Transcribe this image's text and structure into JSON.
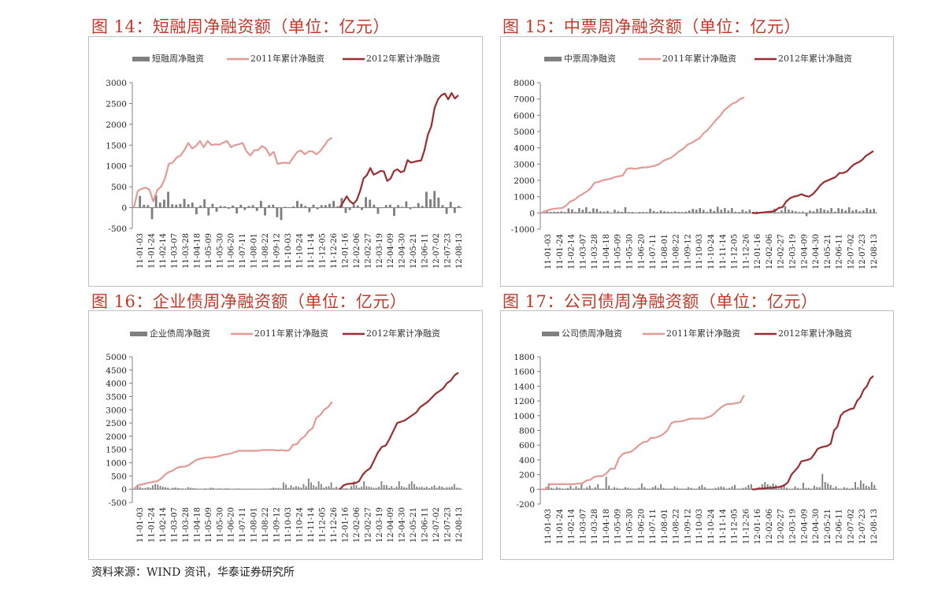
{
  "source": "资料来源：WIND 资讯，华泰证券研究所",
  "colors": {
    "bar": "#7f7f7f",
    "line2011": "#e29a95",
    "line2012": "#9b2d30",
    "title": "#c0392b"
  },
  "dates": [
    "11-01-03",
    "11-01-24",
    "11-02-14",
    "11-03-07",
    "11-03-28",
    "11-04-18",
    "11-05-09",
    "11-05-30",
    "11-06-20",
    "11-07-11",
    "11-08-01",
    "11-08-22",
    "11-09-12",
    "11-10-03",
    "11-10-24",
    "11-11-14",
    "11-12-05",
    "11-12-26",
    "12-01-16",
    "12-02-06",
    "12-02-27",
    "12-03-19",
    "12-04-09",
    "12-04-30",
    "12-05-21",
    "12-06-11",
    "12-07-02",
    "12-07-23",
    "12-08-13"
  ],
  "chart_data": [
    {
      "type": "bar+line",
      "title": "图 14：短融周净融资额（单位：亿元）",
      "legend": [
        "短融周净融资",
        "2011年累计净融资",
        "2012年累计净融资"
      ],
      "ylim": [
        -500,
        3000
      ],
      "yticks": [
        -500,
        0,
        500,
        1000,
        1500,
        2000,
        2500,
        3000
      ],
      "bars": [
        10,
        280,
        70,
        60,
        -280,
        300,
        120,
        190,
        380,
        80,
        70,
        90,
        210,
        80,
        120,
        -160,
        50,
        200,
        -190,
        90,
        -100,
        40,
        30,
        -30,
        50,
        -140,
        70,
        -60,
        40,
        60,
        -80,
        160,
        -190,
        60,
        70,
        -230,
        -300,
        20,
        10,
        30,
        160,
        90,
        40,
        -110,
        70,
        -40,
        60,
        60,
        90,
        160,
        30,
        230,
        -130,
        -60,
        70,
        50,
        -60,
        250,
        190,
        70,
        -150,
        -10,
        60,
        70,
        -200,
        60,
        20,
        150,
        -40,
        20,
        110,
        40,
        380,
        200,
        400,
        240,
        60,
        -150,
        140,
        -130,
        40
      ],
      "series2011": [
        0,
        400,
        450,
        480,
        430,
        150,
        420,
        500,
        700,
        1050,
        1080,
        1200,
        1250,
        1380,
        1550,
        1420,
        1480,
        1600,
        1450,
        1600,
        1500,
        1520,
        1510,
        1560,
        1600,
        1450,
        1500,
        1520,
        1550,
        1350,
        1250,
        1380,
        1380,
        1480,
        1420,
        1250,
        1340,
        1050,
        1070,
        1080,
        1060,
        1200,
        1330,
        1370,
        1280,
        1350,
        1350,
        1280,
        1360,
        1480,
        1620,
        1680
      ],
      "series2012": [
        0,
        130,
        270,
        150,
        90,
        180,
        400,
        700,
        780,
        950,
        790,
        830,
        880,
        870,
        640,
        700,
        880,
        920,
        850,
        880,
        1140,
        1080,
        1100,
        1120,
        1130,
        1380,
        1750,
        1950,
        2400,
        2600,
        2700,
        2740,
        2600,
        2750,
        2620,
        2700
      ]
    },
    {
      "type": "bar+line",
      "title": "图 15：中票周净融资额（单位：亿元）",
      "legend": [
        "中票周净融资",
        "2011年累计净融资",
        "2012年累计净融资"
      ],
      "ylim": [
        -1000,
        8000
      ],
      "yticks": [
        -1000,
        0,
        1000,
        2000,
        3000,
        4000,
        5000,
        6000,
        7000,
        8000
      ],
      "bars": [
        120,
        80,
        60,
        80,
        70,
        100,
        60,
        280,
        220,
        60,
        300,
        200,
        350,
        80,
        280,
        250,
        100,
        80,
        120,
        30,
        200,
        100,
        60,
        350,
        50,
        60,
        30,
        60,
        60,
        50,
        260,
        120,
        60,
        150,
        100,
        80,
        60,
        100,
        60,
        60,
        80,
        150,
        250,
        200,
        300,
        180,
        60,
        250,
        120,
        380,
        200,
        300,
        150,
        300,
        80,
        60,
        200,
        100,
        200,
        70,
        80,
        20,
        50,
        100,
        50,
        260,
        50,
        150,
        420,
        200,
        150,
        100,
        60,
        80,
        -200,
        150,
        100,
        250,
        300,
        200,
        150,
        300,
        80,
        300,
        250,
        150,
        350,
        150,
        200,
        100,
        150,
        300,
        200,
        250
      ],
      "series2011": [
        0,
        120,
        200,
        260,
        280,
        300,
        450,
        700,
        800,
        1000,
        1150,
        1300,
        1500,
        1850,
        1900,
        2000,
        2050,
        2100,
        2200,
        2250,
        2300,
        2700,
        2750,
        2700,
        2750,
        2800,
        2800,
        2850,
        2900,
        3000,
        3200,
        3300,
        3400,
        3600,
        3800,
        3950,
        4200,
        4300,
        4450,
        4600,
        4900,
        5100,
        5400,
        5700,
        5950,
        6300,
        6500,
        6700,
        6800,
        7000,
        7100
      ],
      "series2012": [
        0,
        -20,
        10,
        30,
        60,
        80,
        120,
        300,
        350,
        700,
        900,
        1000,
        1050,
        1150,
        1050,
        1000,
        1150,
        1400,
        1700,
        1900,
        2000,
        2100,
        2200,
        2450,
        2450,
        2550,
        2800,
        3000,
        3100,
        3250,
        3500,
        3650,
        3800
      ]
    },
    {
      "type": "bar+line",
      "title": "图 16：企业债周净融资额（单位：亿元）",
      "legend": [
        "企业债周净融资",
        "2011年累计净融资",
        "2012年累计净融资"
      ],
      "ylim": [
        -500,
        5000
      ],
      "yticks": [
        -500,
        0,
        500,
        1000,
        1500,
        2000,
        2500,
        3000,
        3500,
        4000,
        4500,
        5000
      ],
      "bars": [
        20,
        150,
        80,
        40,
        50,
        80,
        60,
        150,
        200,
        180,
        130,
        100,
        80,
        60,
        20,
        60,
        70,
        50,
        30,
        30,
        20,
        80,
        60,
        40,
        30,
        20,
        10,
        20,
        30,
        20,
        60,
        50,
        10,
        30,
        30,
        20,
        40,
        30,
        10,
        20,
        20,
        30,
        10,
        10,
        20,
        20,
        20,
        20,
        10,
        10,
        10,
        10,
        20,
        20,
        30,
        60,
        40,
        50,
        30,
        260,
        180,
        50,
        150,
        80,
        120,
        100,
        60,
        200,
        120,
        400,
        260,
        150,
        100,
        300,
        200,
        60,
        100,
        120,
        260,
        50,
        100,
        40,
        80,
        40,
        40,
        20,
        120,
        300,
        150,
        60,
        100,
        300,
        120,
        100,
        80,
        50,
        50,
        100,
        300,
        160,
        160,
        60,
        120,
        50,
        100,
        300,
        120,
        80,
        60,
        200,
        300,
        200,
        100,
        80,
        100,
        60,
        100,
        40,
        100,
        150,
        60,
        120,
        100,
        50,
        80,
        80,
        100,
        200,
        60,
        50
      ],
      "series2011": [
        0,
        150,
        180,
        220,
        250,
        280,
        300,
        400,
        550,
        650,
        700,
        800,
        850,
        850,
        900,
        1000,
        1100,
        1150,
        1180,
        1200,
        1200,
        1220,
        1250,
        1300,
        1320,
        1350,
        1400,
        1450,
        1450,
        1450,
        1450,
        1450,
        1450,
        1480,
        1480,
        1480,
        1480,
        1460,
        1480,
        1450,
        1480,
        1680,
        1700,
        1900,
        2000,
        2200,
        2300,
        2700,
        2800,
        3000,
        3100,
        3300
      ],
      "series2012": [
        0,
        150,
        200,
        210,
        230,
        300,
        550,
        700,
        800,
        1100,
        1400,
        1600,
        1650,
        1900,
        2200,
        2500,
        2550,
        2600,
        2700,
        2800,
        2900,
        3100,
        3200,
        3300,
        3450,
        3600,
        3700,
        3800,
        4000,
        4100,
        4300,
        4400
      ]
    },
    {
      "type": "bar+line",
      "title": "图 17：公司债周净融资额（单位：亿元）",
      "legend": [
        "公司债周净融资",
        "2011年累计净融资",
        "2012年累计净融资"
      ],
      "ylim": [
        -200,
        1800
      ],
      "yticks": [
        -200,
        0,
        200,
        400,
        600,
        800,
        1000,
        1200,
        1400,
        1600,
        1800
      ],
      "bars": [
        0,
        30,
        80,
        20,
        10,
        30,
        20,
        10,
        10,
        20,
        50,
        10,
        40,
        20,
        70,
        10,
        30,
        50,
        10,
        30,
        70,
        10,
        10,
        170,
        50,
        10,
        30,
        20,
        10,
        10,
        30,
        20,
        10,
        10,
        10,
        20,
        80,
        30,
        10,
        10,
        30,
        50,
        20,
        70,
        20,
        10,
        10,
        10,
        40,
        20,
        10,
        10,
        10,
        30,
        20,
        10,
        10,
        40,
        60,
        30,
        10,
        10,
        10,
        20,
        30,
        40,
        30,
        10,
        20,
        40,
        60,
        10,
        10,
        20,
        30,
        60,
        70,
        10,
        20,
        30,
        70,
        100,
        70,
        50,
        80,
        60,
        10,
        40,
        70,
        20,
        10,
        10,
        40,
        20,
        10,
        90,
        20,
        20,
        10,
        50,
        30,
        30,
        210,
        100,
        80,
        60,
        20,
        40,
        10,
        10,
        30,
        20,
        10,
        20,
        100,
        30,
        120,
        80,
        50,
        40,
        100,
        60
      ],
      "series2011": [
        0,
        0,
        70,
        70,
        70,
        70,
        70,
        70,
        70,
        80,
        80,
        120,
        130,
        170,
        180,
        180,
        220,
        280,
        280,
        420,
        480,
        500,
        510,
        550,
        600,
        640,
        650,
        700,
        700,
        720,
        750,
        800,
        900,
        920,
        920,
        930,
        950,
        960,
        960,
        960,
        960,
        980,
        1000,
        1050,
        1100,
        1140,
        1160,
        1160,
        1170,
        1180,
        1280
      ],
      "series2012": [
        0,
        0,
        10,
        10,
        15,
        20,
        20,
        25,
        30,
        40,
        60,
        100,
        200,
        250,
        300,
        380,
        390,
        400,
        420,
        480,
        550,
        570,
        580,
        590,
        620,
        800,
        850,
        1000,
        1050,
        1070,
        1090,
        1100,
        1200,
        1250,
        1350,
        1400,
        1500,
        1540
      ]
    }
  ],
  "panels": [
    {
      "title": "图 14：短融周净融资额（单位：亿元）",
      "legend_bar": "短融周净融资",
      "legend_2011": "2011年累计净融资",
      "legend_2012": "2012年累计净融资"
    },
    {
      "title": "图 15：中票周净融资额（单位：亿元）",
      "legend_bar": "中票周净融资",
      "legend_2011": "2011年累计净融资",
      "legend_2012": "2012年累计净融资"
    },
    {
      "title": "图 16：企业债周净融资额（单位：亿元）",
      "legend_bar": "企业债周净融资",
      "legend_2011": "2011年累计净融资",
      "legend_2012": "2012年累计净融资"
    },
    {
      "title": "图 17：公司债周净融资额（单位：亿元）",
      "legend_bar": "公司债周净融资",
      "legend_2011": "2011年累计净融资",
      "legend_2012": "2012年累计净融资"
    }
  ]
}
